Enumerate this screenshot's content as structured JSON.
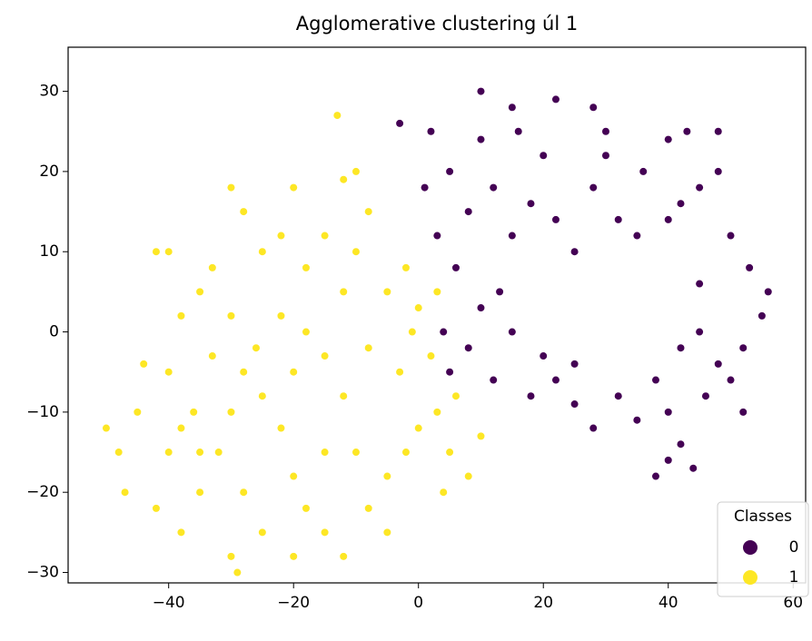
{
  "chart_data": {
    "type": "scatter",
    "title": "Agglomerative clustering úl 1",
    "xlim": [
      -56.1,
      62
    ],
    "ylim": [
      -31.3,
      35.5
    ],
    "xticks": [
      {
        "value": -40,
        "label": "−40"
      },
      {
        "value": -20,
        "label": "−20"
      },
      0,
      20,
      40,
      60
    ],
    "yticks": [
      {
        "value": -30,
        "label": "−30"
      },
      {
        "value": -20,
        "label": "−20"
      },
      {
        "value": -10,
        "label": "−10"
      },
      0,
      10,
      20,
      30
    ],
    "legend": {
      "title": "Classes",
      "position": "lower right"
    },
    "series": [
      {
        "name": "0",
        "color": "#440154",
        "x": [
          8,
          12,
          15,
          18,
          22,
          25,
          28,
          20,
          16,
          10,
          5,
          2,
          -3,
          28,
          22,
          15,
          10,
          30,
          32,
          35,
          3,
          6,
          10,
          13,
          8,
          15,
          5,
          20,
          22,
          18,
          25,
          25,
          28,
          32,
          35,
          38,
          40,
          42,
          40,
          44,
          38,
          46,
          48,
          50,
          42,
          45,
          52,
          40,
          42,
          45,
          48,
          50,
          53,
          56,
          55,
          52,
          45,
          43,
          48,
          36,
          40,
          30,
          1,
          4,
          12
        ],
        "values": [
          15,
          18,
          12,
          16,
          14,
          10,
          18,
          22,
          25,
          24,
          20,
          25,
          26,
          28,
          29,
          28,
          30,
          22,
          14,
          12,
          12,
          8,
          3,
          5,
          -2,
          0,
          -5,
          -3,
          -6,
          -8,
          -4,
          -9,
          -12,
          -8,
          -11,
          -6,
          -10,
          -14,
          -16,
          -17,
          -18,
          -8,
          -4,
          -6,
          -2,
          0,
          -10,
          14,
          16,
          18,
          20,
          12,
          8,
          5,
          2,
          -2,
          6,
          25,
          25,
          20,
          24,
          25,
          18,
          0,
          -6
        ]
      },
      {
        "name": "1",
        "color": "#fde725",
        "x": [
          -25,
          -22,
          -28,
          -20,
          -30,
          -18,
          -15,
          -12,
          -10,
          -8,
          -5,
          -2,
          0,
          3,
          -13,
          -12,
          -10,
          -35,
          -38,
          -40,
          -45,
          -48,
          -50,
          -47,
          -42,
          -38,
          -35,
          -32,
          -30,
          -28,
          -25,
          -22,
          -20,
          -18,
          -15,
          -12,
          -8,
          -5,
          -2,
          0,
          3,
          5,
          8,
          10,
          6,
          2,
          -3,
          -8,
          -12,
          -15,
          -18,
          -22,
          -26,
          -30,
          -33,
          -36,
          -40,
          -35,
          -28,
          -25,
          -29,
          -30,
          -42,
          -40,
          -20,
          -10,
          -15,
          -5,
          -20,
          -38,
          -44,
          -1,
          4,
          -33
        ],
        "values": [
          10,
          12,
          15,
          18,
          18,
          8,
          12,
          5,
          10,
          15,
          5,
          8,
          3,
          5,
          27,
          19,
          20,
          5,
          2,
          -5,
          -10,
          -15,
          -12,
          -20,
          -22,
          -25,
          -20,
          -15,
          -10,
          -5,
          -8,
          -12,
          -18,
          -22,
          -25,
          -28,
          -22,
          -18,
          -15,
          -12,
          -10,
          -15,
          -18,
          -13,
          -8,
          -3,
          -5,
          -2,
          -8,
          -3,
          0,
          2,
          -2,
          2,
          -3,
          -10,
          -15,
          -15,
          -20,
          -25,
          -30,
          -28,
          10,
          10,
          -5,
          -15,
          -15,
          -25,
          -28,
          -12,
          -4,
          0,
          -20,
          8
        ]
      }
    ]
  }
}
